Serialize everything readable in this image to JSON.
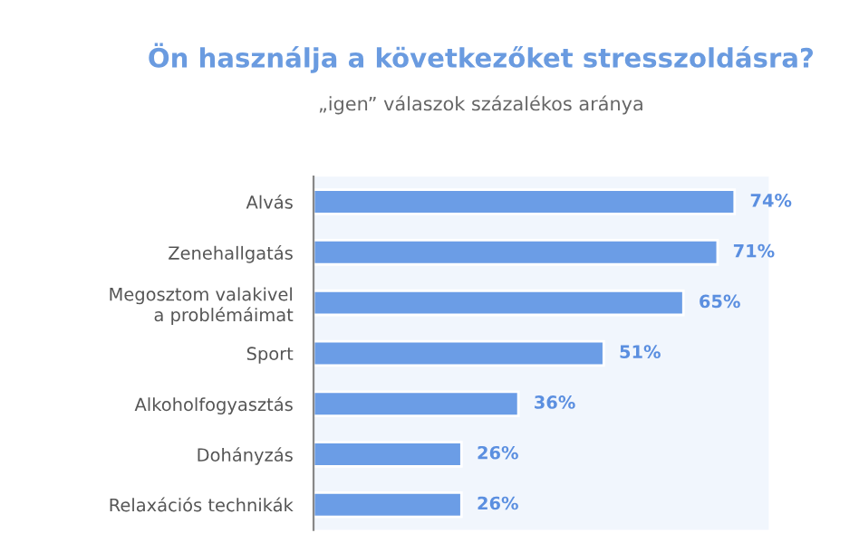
{
  "chart_data": {
    "type": "bar",
    "orientation": "horizontal",
    "title": "Ön használja a következőket stresszoldásra?",
    "subtitle": "„igen” válaszok százalékos aránya",
    "categories": [
      "Alvás",
      "Zenehallgatás",
      "Megosztom valakivel\na problémáimat",
      "Sport",
      "Alkoholfogyasztás",
      "Dohányzás",
      "Relaxációs technikák"
    ],
    "values": [
      74,
      71,
      65,
      51,
      36,
      26,
      26
    ],
    "value_labels": [
      "74%",
      "71%",
      "65%",
      "51%",
      "36%",
      "26%",
      "26%"
    ],
    "color": "#6b9de6",
    "xlim": [
      0,
      80
    ],
    "tick_labels": "y"
  }
}
